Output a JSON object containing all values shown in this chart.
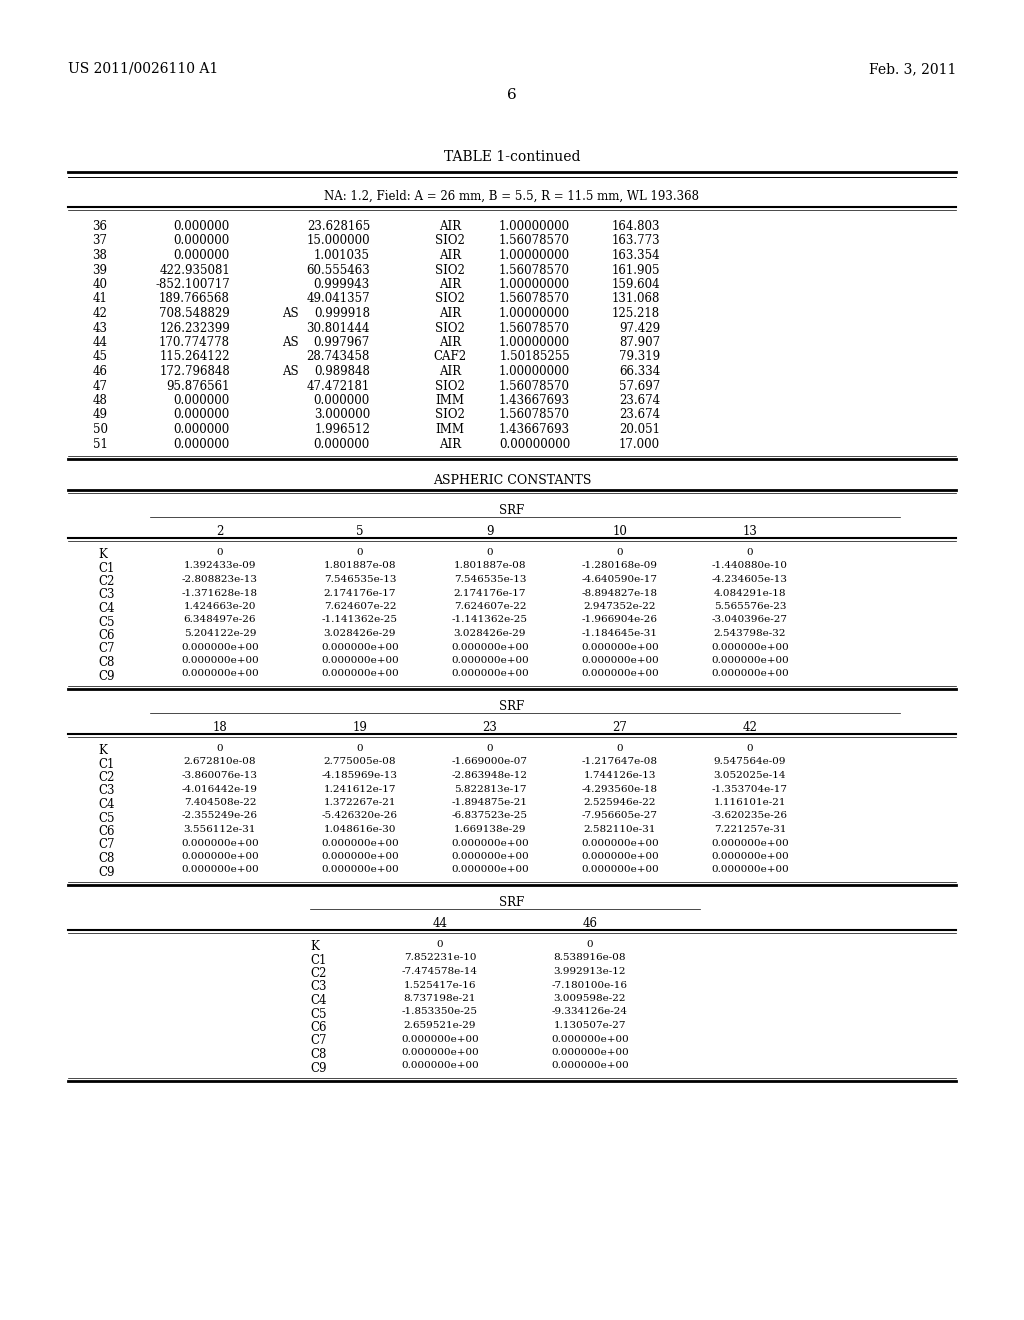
{
  "header_left": "US 2011/0026110 A1",
  "header_right": "Feb. 3, 2011",
  "page_number": "6",
  "table_title": "TABLE 1-continued",
  "table_subtitle": "NA: 1.2, Field: A = 26 mm, B = 5.5, R = 11.5 mm, WL 193.368",
  "main_table_rows": [
    [
      "36",
      "0.000000",
      "",
      "23.628165",
      "AIR",
      "1.00000000",
      "164.803"
    ],
    [
      "37",
      "0.000000",
      "",
      "15.000000",
      "SIO2",
      "1.56078570",
      "163.773"
    ],
    [
      "38",
      "0.000000",
      "",
      "1.001035",
      "AIR",
      "1.00000000",
      "163.354"
    ],
    [
      "39",
      "422.935081",
      "",
      "60.555463",
      "SIO2",
      "1.56078570",
      "161.905"
    ],
    [
      "40",
      "-852.100717",
      "",
      "0.999943",
      "AIR",
      "1.00000000",
      "159.604"
    ],
    [
      "41",
      "189.766568",
      "",
      "49.041357",
      "SIO2",
      "1.56078570",
      "131.068"
    ],
    [
      "42",
      "708.548829",
      "AS",
      "0.999918",
      "AIR",
      "1.00000000",
      "125.218"
    ],
    [
      "43",
      "126.232399",
      "",
      "30.801444",
      "SIO2",
      "1.56078570",
      "97.429"
    ],
    [
      "44",
      "170.774778",
      "AS",
      "0.997967",
      "AIR",
      "1.00000000",
      "87.907"
    ],
    [
      "45",
      "115.264122",
      "",
      "28.743458",
      "CAF2",
      "1.50185255",
      "79.319"
    ],
    [
      "46",
      "172.796848",
      "AS",
      "0.989848",
      "AIR",
      "1.00000000",
      "66.334"
    ],
    [
      "47",
      "95.876561",
      "",
      "47.472181",
      "SIO2",
      "1.56078570",
      "57.697"
    ],
    [
      "48",
      "0.000000",
      "",
      "0.000000",
      "IMM",
      "1.43667693",
      "23.674"
    ],
    [
      "49",
      "0.000000",
      "",
      "3.000000",
      "SIO2",
      "1.56078570",
      "23.674"
    ],
    [
      "50",
      "0.000000",
      "",
      "1.996512",
      "IMM",
      "1.43667693",
      "20.051"
    ],
    [
      "51",
      "0.000000",
      "",
      "0.000000",
      "AIR",
      "0.00000000",
      "17.000"
    ]
  ],
  "aspheric_title": "ASPHERIC CONSTANTS",
  "srf_label": "SRF",
  "srf1_cols": [
    "2",
    "5",
    "9",
    "10",
    "13"
  ],
  "srf1_rows": [
    [
      "K",
      "0",
      "0",
      "0",
      "0",
      "0"
    ],
    [
      "C1",
      "1.392433e-09",
      "1.801887e-08",
      "1.801887e-08",
      "-1.280168e-09",
      "-1.440880e-10"
    ],
    [
      "C2",
      "-2.808823e-13",
      "7.546535e-13",
      "7.546535e-13",
      "-4.640590e-17",
      "-4.234605e-13"
    ],
    [
      "C3",
      "-1.371628e-18",
      "2.174176e-17",
      "2.174176e-17",
      "-8.894827e-18",
      "4.084291e-18"
    ],
    [
      "C4",
      "1.424663e-20",
      "7.624607e-22",
      "7.624607e-22",
      "2.947352e-22",
      "5.565576e-23"
    ],
    [
      "C5",
      "6.348497e-26",
      "-1.141362e-25",
      "-1.141362e-25",
      "-1.966904e-26",
      "-3.040396e-27"
    ],
    [
      "C6",
      "5.204122e-29",
      "3.028426e-29",
      "3.028426e-29",
      "-1.184645e-31",
      "2.543798e-32"
    ],
    [
      "C7",
      "0.000000e+00",
      "0.000000e+00",
      "0.000000e+00",
      "0.000000e+00",
      "0.000000e+00"
    ],
    [
      "C8",
      "0.000000e+00",
      "0.000000e+00",
      "0.000000e+00",
      "0.000000e+00",
      "0.000000e+00"
    ],
    [
      "C9",
      "0.000000e+00",
      "0.000000e+00",
      "0.000000e+00",
      "0.000000e+00",
      "0.000000e+00"
    ]
  ],
  "srf2_cols": [
    "18",
    "19",
    "23",
    "27",
    "42"
  ],
  "srf2_rows": [
    [
      "K",
      "0",
      "0",
      "0",
      "0",
      "0"
    ],
    [
      "C1",
      "2.672810e-08",
      "2.775005e-08",
      "-1.669000e-07",
      "-1.217647e-08",
      "9.547564e-09"
    ],
    [
      "C2",
      "-3.860076e-13",
      "-4.185969e-13",
      "-2.863948e-12",
      "1.744126e-13",
      "3.052025e-14"
    ],
    [
      "C3",
      "-4.016442e-19",
      "1.241612e-17",
      "5.822813e-17",
      "-4.293560e-18",
      "-1.353704e-17"
    ],
    [
      "C4",
      "7.404508e-22",
      "1.372267e-21",
      "-1.894875e-21",
      "2.525946e-22",
      "1.116101e-21"
    ],
    [
      "C5",
      "-2.355249e-26",
      "-5.426320e-26",
      "-6.837523e-25",
      "-7.956605e-27",
      "-3.620235e-26"
    ],
    [
      "C6",
      "3.556112e-31",
      "1.048616e-30",
      "1.669138e-29",
      "2.582110e-31",
      "7.221257e-31"
    ],
    [
      "C7",
      "0.000000e+00",
      "0.000000e+00",
      "0.000000e+00",
      "0.000000e+00",
      "0.000000e+00"
    ],
    [
      "C8",
      "0.000000e+00",
      "0.000000e+00",
      "0.000000e+00",
      "0.000000e+00",
      "0.000000e+00"
    ],
    [
      "C9",
      "0.000000e+00",
      "0.000000e+00",
      "0.000000e+00",
      "0.000000e+00",
      "0.000000e+00"
    ]
  ],
  "srf3_cols": [
    "44",
    "46"
  ],
  "srf3_rows": [
    [
      "K",
      "0",
      "0"
    ],
    [
      "C1",
      "7.852231e-10",
      "8.538916e-08"
    ],
    [
      "C2",
      "-7.474578e-14",
      "3.992913e-12"
    ],
    [
      "C3",
      "1.525417e-16",
      "-7.180100e-16"
    ],
    [
      "C4",
      "8.737198e-21",
      "3.009598e-22"
    ],
    [
      "C5",
      "-1.853350e-25",
      "-9.334126e-24"
    ],
    [
      "C6",
      "2.659521e-29",
      "1.130507e-27"
    ],
    [
      "C7",
      "0.000000e+00",
      "0.000000e+00"
    ],
    [
      "C8",
      "0.000000e+00",
      "0.000000e+00"
    ],
    [
      "C9",
      "0.000000e+00",
      "0.000000e+00"
    ]
  ],
  "bg_color": "#ffffff",
  "text_color": "#000000"
}
